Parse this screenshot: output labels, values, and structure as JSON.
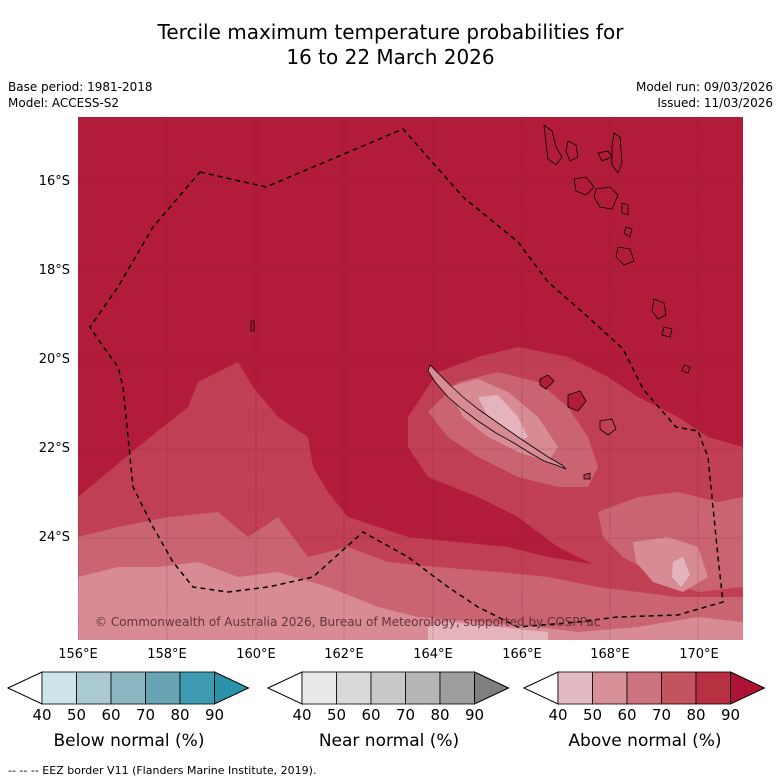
{
  "title_line1": "Tercile maximum temperature probabilities for",
  "title_line2": "16 to 22 March 2026",
  "meta": {
    "base_period": "Base period: 1981-2018",
    "model": "Model: ACCESS-S2",
    "model_run": "Model run: 09/03/2026",
    "issued": "Issued: 11/03/2026"
  },
  "map": {
    "lat_labels": [
      "16°S",
      "18°S",
      "20°S",
      "22°S",
      "24°S"
    ],
    "lon_labels": [
      "156°E",
      "158°E",
      "160°E",
      "162°E",
      "164°E",
      "166°E",
      "168°E",
      "170°E"
    ],
    "copyright": "© Commonwealth of Australia 2026, Bureau of Meteorology, supported by COSPPac"
  },
  "colorbars": [
    {
      "label": "Below normal (%)",
      "ticks": [
        "40",
        "50",
        "60",
        "70",
        "80",
        "90"
      ],
      "colors": [
        "#cde4ea",
        "#a9cad1",
        "#8bb7c2",
        "#68a5b4",
        "#3f9bb0",
        "#2a93aa"
      ]
    },
    {
      "label": "Near normal (%)",
      "ticks": [
        "40",
        "50",
        "60",
        "70",
        "80",
        "90"
      ],
      "colors": [
        "#e8e8e8",
        "#d9d9d9",
        "#c9c9c9",
        "#b5b5b5",
        "#9e9e9e",
        "#808080"
      ]
    },
    {
      "label": "Above normal (%)",
      "ticks": [
        "40",
        "50",
        "60",
        "70",
        "80",
        "90"
      ],
      "colors": [
        "#e3b9c2",
        "#d89099",
        "#cd727f",
        "#c2535f",
        "#b73143",
        "#af1237"
      ]
    }
  ],
  "footer": "-- -- -- EEZ border V11 (Flanders Marine Institute, 2019).",
  "colors": {
    "above_80_90": "#b21c3a",
    "above_70_80": "#c13f52",
    "above_60_70": "#ca6471",
    "above_50_60": "#d88a95",
    "above_40_50": "#e4b3bb"
  }
}
